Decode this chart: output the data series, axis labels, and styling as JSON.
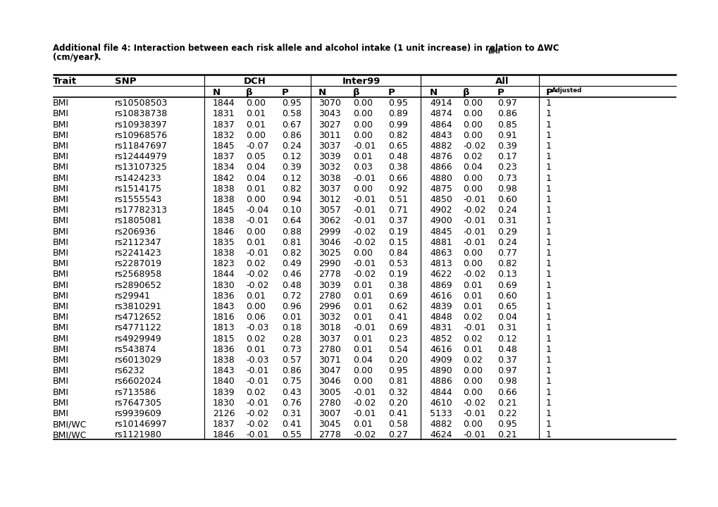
{
  "title_bold": "Additional file 4: Interaction between each risk allele and alcohol intake (1 unit increase) in relation to ΔWC",
  "title_sub_bmi": "BMI",
  "title_line2": "(cm/year)",
  "title_sup1": "1",
  "rows": [
    [
      "BMI",
      "rs10508503",
      "1844",
      "0.00",
      "0.95",
      "3070",
      "0.00",
      "0.95",
      "4914",
      "0.00",
      "0.97",
      "1"
    ],
    [
      "BMI",
      "rs10838738",
      "1831",
      "0.01",
      "0.58",
      "3043",
      "0.00",
      "0.89",
      "4874",
      "0.00",
      "0.86",
      "1"
    ],
    [
      "BMI",
      "rs10938397",
      "1837",
      "0.01",
      "0.67",
      "3027",
      "0.00",
      "0.99",
      "4864",
      "0.00",
      "0.85",
      "1"
    ],
    [
      "BMI",
      "rs10968576",
      "1832",
      "0.00",
      "0.86",
      "3011",
      "0.00",
      "0.82",
      "4843",
      "0.00",
      "0.91",
      "1"
    ],
    [
      "BMI",
      "rs11847697",
      "1845",
      "-0.07",
      "0.24",
      "3037",
      "-0.01",
      "0.65",
      "4882",
      "-0.02",
      "0.39",
      "1"
    ],
    [
      "BMI",
      "rs12444979",
      "1837",
      "0.05",
      "0.12",
      "3039",
      "0.01",
      "0.48",
      "4876",
      "0.02",
      "0.17",
      "1"
    ],
    [
      "BMI",
      "rs13107325",
      "1834",
      "0.04",
      "0.39",
      "3032",
      "0.03",
      "0.38",
      "4866",
      "0.04",
      "0.23",
      "1"
    ],
    [
      "BMI",
      "rs1424233",
      "1842",
      "0.04",
      "0.12",
      "3038",
      "-0.01",
      "0.66",
      "4880",
      "0.00",
      "0.73",
      "1"
    ],
    [
      "BMI",
      "rs1514175",
      "1838",
      "0.01",
      "0.82",
      "3037",
      "0.00",
      "0.92",
      "4875",
      "0.00",
      "0.98",
      "1"
    ],
    [
      "BMI",
      "rs1555543",
      "1838",
      "0.00",
      "0.94",
      "3012",
      "-0.01",
      "0.51",
      "4850",
      "-0.01",
      "0.60",
      "1"
    ],
    [
      "BMI",
      "rs17782313",
      "1845",
      "-0.04",
      "0.10",
      "3057",
      "-0.01",
      "0.71",
      "4902",
      "-0.02",
      "0.24",
      "1"
    ],
    [
      "BMI",
      "rs1805081",
      "1838",
      "-0.01",
      "0.64",
      "3062",
      "-0.01",
      "0.37",
      "4900",
      "-0.01",
      "0.31",
      "1"
    ],
    [
      "BMI",
      "rs206936",
      "1846",
      "0.00",
      "0.88",
      "2999",
      "-0.02",
      "0.19",
      "4845",
      "-0.01",
      "0.29",
      "1"
    ],
    [
      "BMI",
      "rs2112347",
      "1835",
      "0.01",
      "0.81",
      "3046",
      "-0.02",
      "0.15",
      "4881",
      "-0.01",
      "0.24",
      "1"
    ],
    [
      "BMI",
      "rs2241423",
      "1838",
      "-0.01",
      "0.82",
      "3025",
      "0.00",
      "0.84",
      "4863",
      "0.00",
      "0.77",
      "1"
    ],
    [
      "BMI",
      "rs2287019",
      "1823",
      "0.02",
      "0.49",
      "2990",
      "-0.01",
      "0.53",
      "4813",
      "0.00",
      "0.82",
      "1"
    ],
    [
      "BMI",
      "rs2568958",
      "1844",
      "-0.02",
      "0.46",
      "2778",
      "-0.02",
      "0.19",
      "4622",
      "-0.02",
      "0.13",
      "1"
    ],
    [
      "BMI",
      "rs2890652",
      "1830",
      "-0.02",
      "0.48",
      "3039",
      "0.01",
      "0.38",
      "4869",
      "0.01",
      "0.69",
      "1"
    ],
    [
      "BMI",
      "rs29941",
      "1836",
      "0.01",
      "0.72",
      "2780",
      "0.01",
      "0.69",
      "4616",
      "0.01",
      "0.60",
      "1"
    ],
    [
      "BMI",
      "rs3810291",
      "1843",
      "0.00",
      "0.96",
      "2996",
      "0.01",
      "0.62",
      "4839",
      "0.01",
      "0.65",
      "1"
    ],
    [
      "BMI",
      "rs4712652",
      "1816",
      "0.06",
      "0.01",
      "3032",
      "0.01",
      "0.41",
      "4848",
      "0.02",
      "0.04",
      "1"
    ],
    [
      "BMI",
      "rs4771122",
      "1813",
      "-0.03",
      "0.18",
      "3018",
      "-0.01",
      "0.69",
      "4831",
      "-0.01",
      "0.31",
      "1"
    ],
    [
      "BMI",
      "rs4929949",
      "1815",
      "0.02",
      "0.28",
      "3037",
      "0.01",
      "0.23",
      "4852",
      "0.02",
      "0.12",
      "1"
    ],
    [
      "BMI",
      "rs543874",
      "1836",
      "0.01",
      "0.73",
      "2780",
      "0.01",
      "0.54",
      "4616",
      "0.01",
      "0.48",
      "1"
    ],
    [
      "BMI",
      "rs6013029",
      "1838",
      "-0.03",
      "0.57",
      "3071",
      "0.04",
      "0.20",
      "4909",
      "0.02",
      "0.37",
      "1"
    ],
    [
      "BMI",
      "rs6232",
      "1843",
      "-0.01",
      "0.86",
      "3047",
      "0.00",
      "0.95",
      "4890",
      "0.00",
      "0.97",
      "1"
    ],
    [
      "BMI",
      "rs6602024",
      "1840",
      "-0.01",
      "0.75",
      "3046",
      "0.00",
      "0.81",
      "4886",
      "0.00",
      "0.98",
      "1"
    ],
    [
      "BMI",
      "rs713586",
      "1839",
      "0.02",
      "0.43",
      "3005",
      "-0.01",
      "0.32",
      "4844",
      "0.00",
      "0.66",
      "1"
    ],
    [
      "BMI",
      "rs7647305",
      "1830",
      "-0.01",
      "0.76",
      "2780",
      "-0.02",
      "0.20",
      "4610",
      "-0.02",
      "0.21",
      "1"
    ],
    [
      "BMI",
      "rs9939609",
      "2126",
      "-0.02",
      "0.31",
      "3007",
      "-0.01",
      "0.41",
      "5133",
      "-0.01",
      "0.22",
      "1"
    ],
    [
      "BMI/WC",
      "rs10146997",
      "1837",
      "-0.02",
      "0.41",
      "3045",
      "0.01",
      "0.58",
      "4882",
      "0.00",
      "0.95",
      "1"
    ],
    [
      "BMI/WC",
      "rs1121980",
      "1846",
      "-0.01",
      "0.55",
      "2778",
      "-0.02",
      "0.27",
      "4624",
      "-0.01",
      "0.21",
      "1"
    ]
  ],
  "bg_color": "#ffffff",
  "title_fontsize": 8.5,
  "header_fontsize": 9.5,
  "data_fontsize": 9.0,
  "font_family": "DejaVu Sans"
}
